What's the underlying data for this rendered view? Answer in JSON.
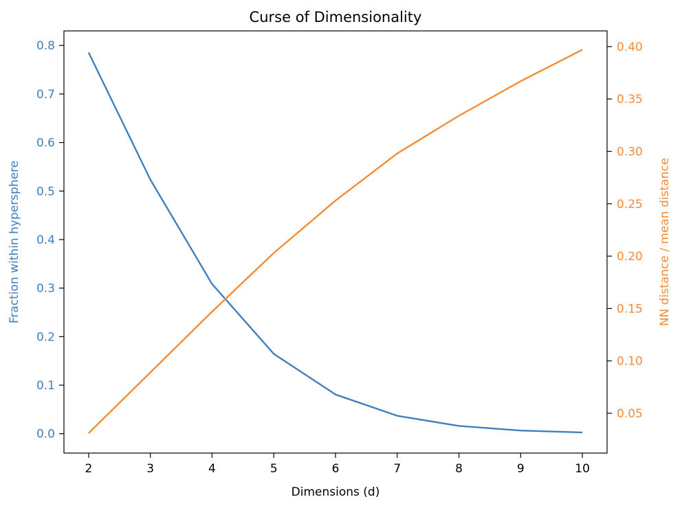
{
  "chart_data": {
    "type": "line",
    "title": "Curse of Dimensionality",
    "xlabel": "Dimensions (d)",
    "ylabel_left": "Fraction within hypersphere",
    "ylabel_right": "NN distance / mean distance",
    "x": [
      2,
      3,
      4,
      5,
      6,
      7,
      8,
      9,
      10
    ],
    "xlim": [
      1.6,
      10.4
    ],
    "ylim_left": [
      -0.04,
      0.83
    ],
    "ylim_right": [
      0.012,
      0.415
    ],
    "x_ticks": [
      "2",
      "3",
      "4",
      "5",
      "6",
      "7",
      "8",
      "9",
      "10"
    ],
    "y_left_ticks": [
      "0.0",
      "0.1",
      "0.2",
      "0.3",
      "0.4",
      "0.5",
      "0.6",
      "0.7",
      "0.8"
    ],
    "y_right_ticks": [
      "0.05",
      "0.10",
      "0.15",
      "0.20",
      "0.25",
      "0.30",
      "0.35",
      "0.40"
    ],
    "grid": false,
    "series": [
      {
        "axis": "left",
        "color": "#3f7fbf",
        "values": [
          0.7854,
          0.5236,
          0.3084,
          0.1645,
          0.0807,
          0.0369,
          0.0159,
          0.0064,
          0.0025
        ]
      },
      {
        "axis": "right",
        "color": "#f58b35",
        "values": [
          0.031,
          0.089,
          0.147,
          0.203,
          0.253,
          0.298,
          0.334,
          0.367,
          0.397
        ]
      }
    ],
    "colors": {
      "left_axis": "#3f7fbf",
      "right_axis": "#f58b35",
      "frame": "#000000"
    }
  }
}
